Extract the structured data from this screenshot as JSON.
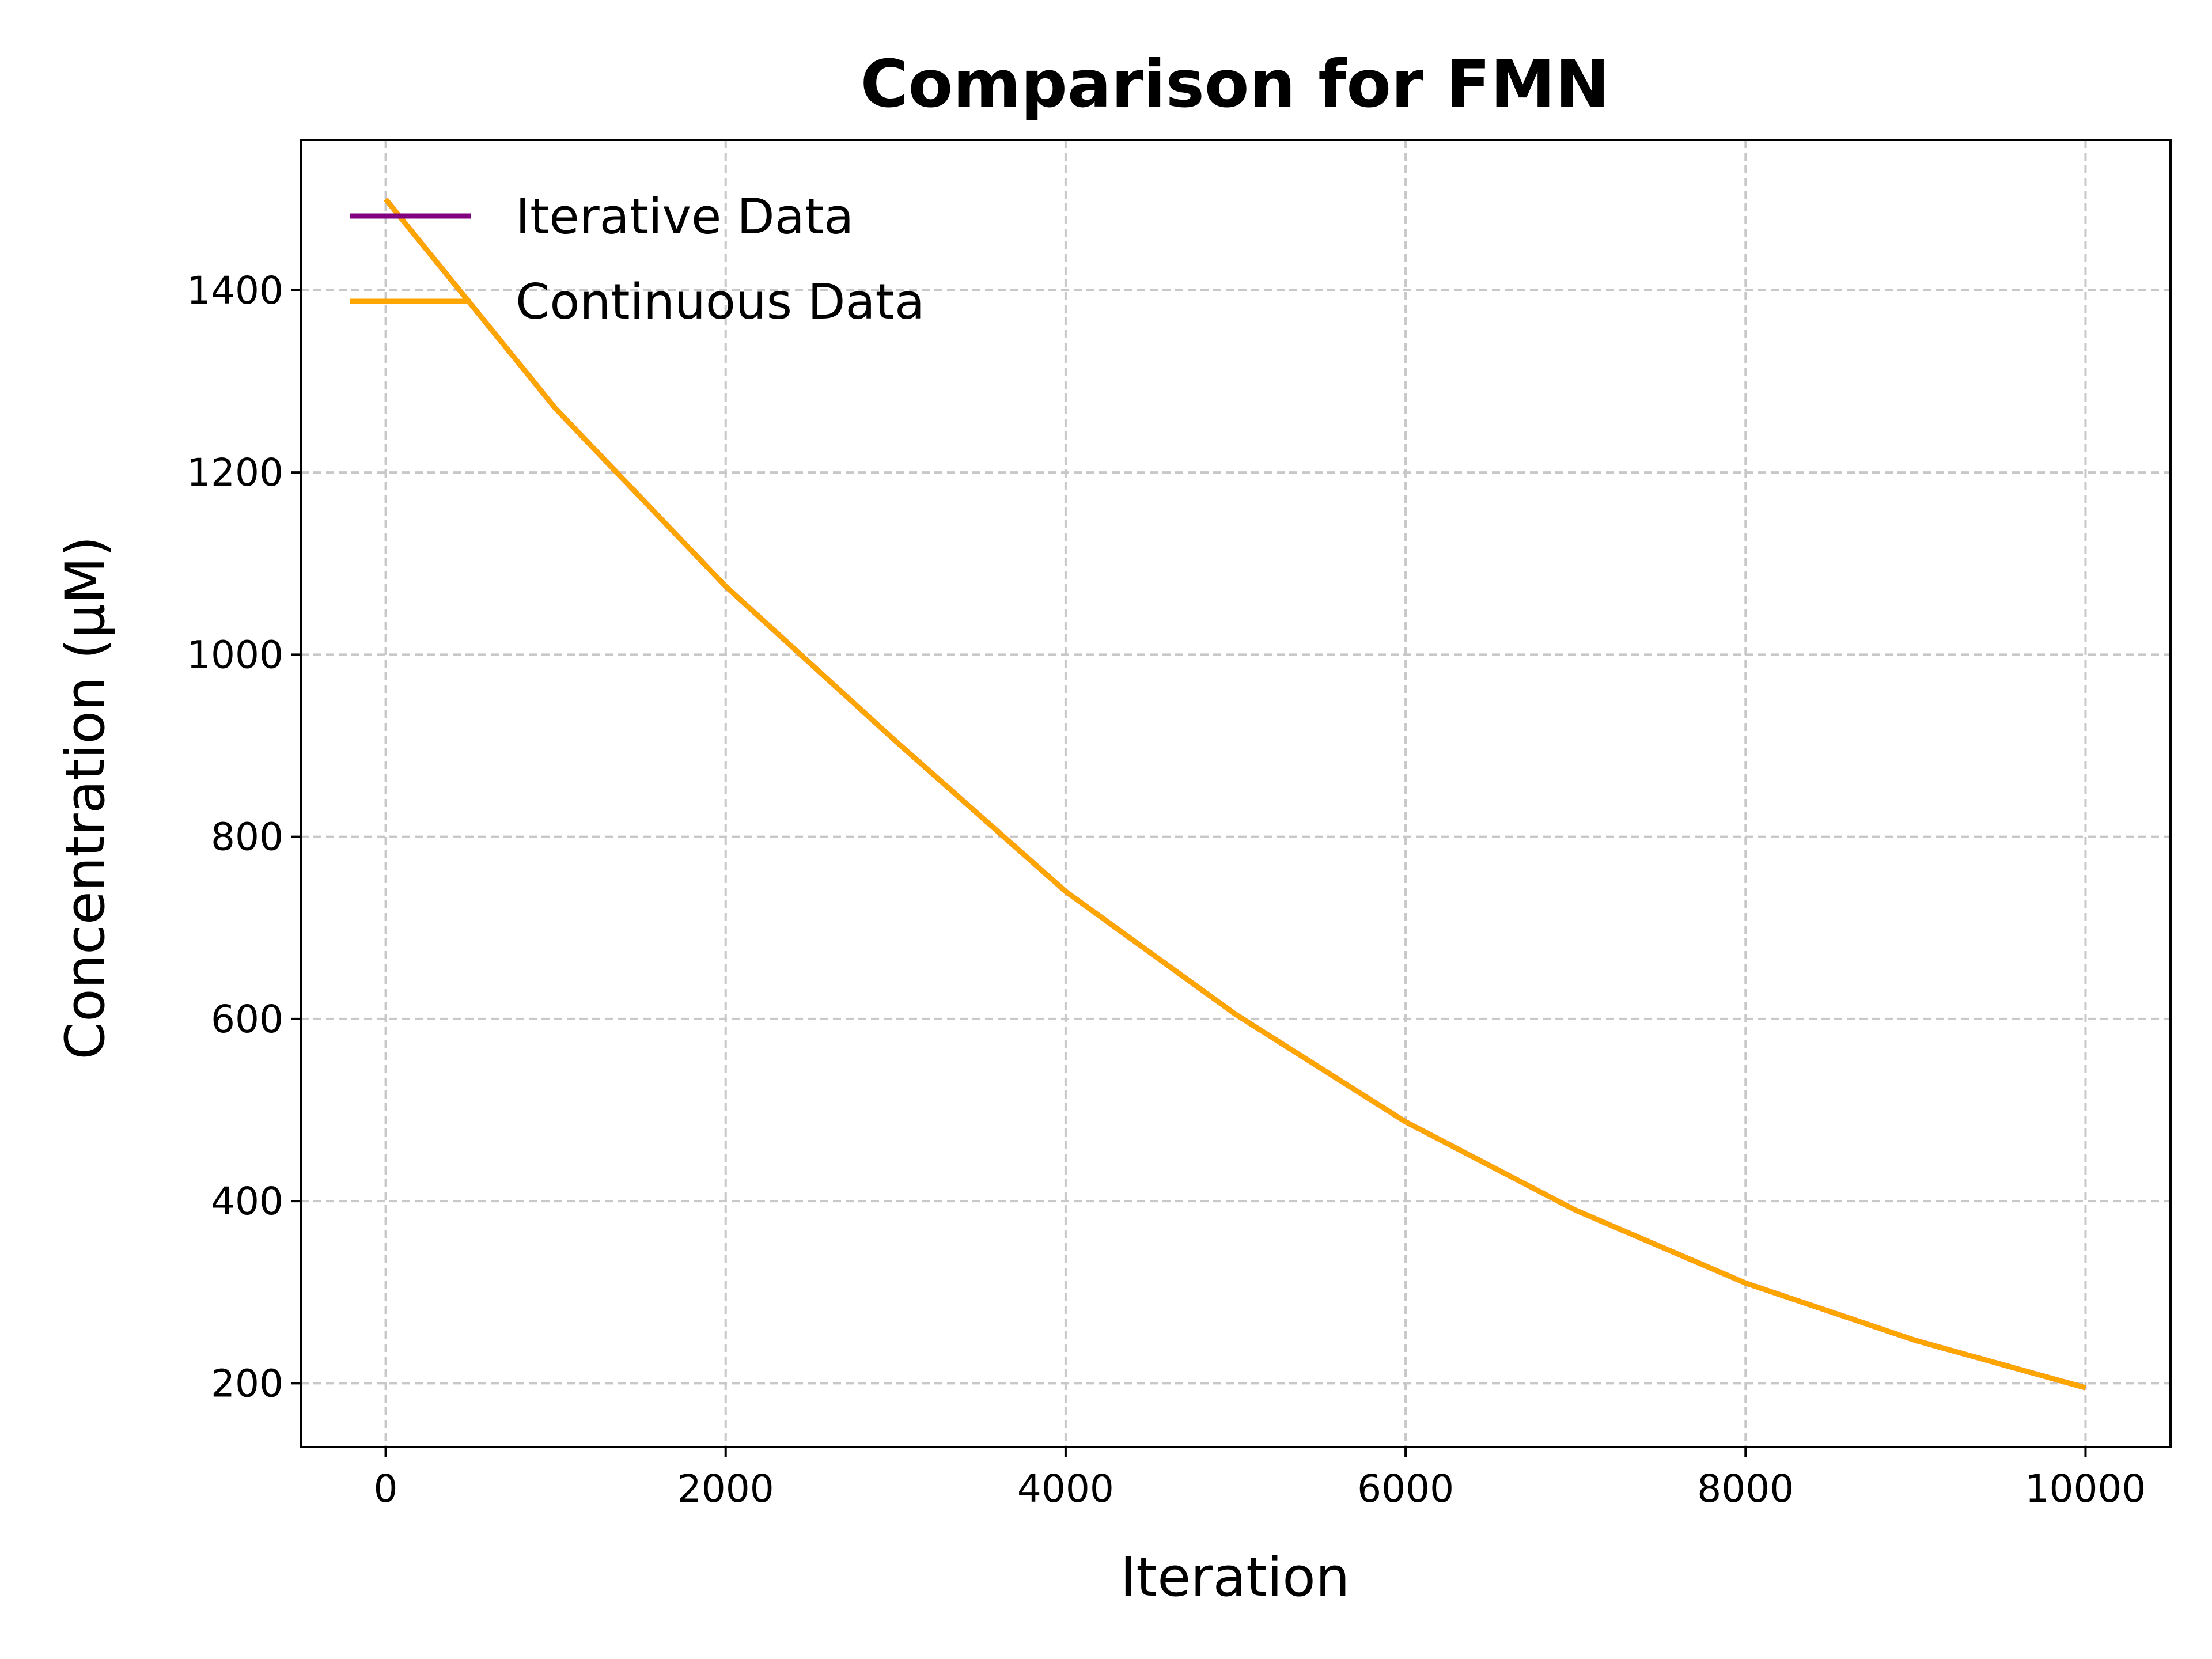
{
  "chart_data": {
    "type": "line",
    "title": "Comparison for FMN",
    "xlabel": "Iteration",
    "ylabel": "Concentration (μM)",
    "xlim": [
      -500,
      10500
    ],
    "ylim": [
      130,
      1565
    ],
    "xticks": [
      0,
      2000,
      4000,
      6000,
      8000,
      10000
    ],
    "yticks": [
      200,
      400,
      600,
      800,
      1000,
      1200,
      1400
    ],
    "grid": true,
    "legend_position": "upper-left",
    "series": [
      {
        "name": "Iterative Data",
        "color": "#800080",
        "x": [
          0,
          1000,
          2000,
          3000,
          4000,
          5000,
          6000,
          7000,
          8000,
          9000,
          10000
        ],
        "values": [
          1500,
          1270,
          1075,
          905,
          740,
          605,
          487,
          390,
          310,
          247,
          195
        ]
      },
      {
        "name": "Continuous Data",
        "color": "#ffa500",
        "x": [
          0,
          1000,
          2000,
          3000,
          4000,
          5000,
          6000,
          7000,
          8000,
          9000,
          10000
        ],
        "values": [
          1500,
          1270,
          1075,
          905,
          740,
          605,
          487,
          390,
          310,
          247,
          195
        ]
      }
    ]
  }
}
